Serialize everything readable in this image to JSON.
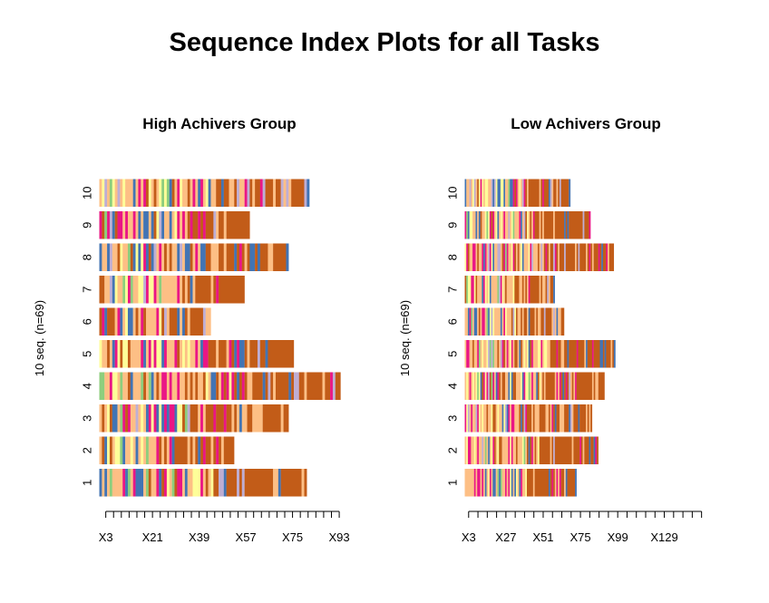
{
  "main_title": "Sequence Index Plots for all Tasks",
  "palette": {
    "dark_orange": "#c25c18",
    "light_orange": "#fdbf85",
    "pink": "#ea1685",
    "blue": "#4274b4",
    "yellow": "#fefe99",
    "green": "#8dce7d",
    "lavender": "#beaed4",
    "white": "#ffffff"
  },
  "chart_data": [
    {
      "type": "sequence-index",
      "title": "High Achivers Group",
      "ylabel": "10 seq. (n=69)",
      "sequence_labels": [
        "1",
        "2",
        "3",
        "4",
        "5",
        "6",
        "7",
        "8",
        "9",
        "10"
      ],
      "x_tick_labels": [
        "X3",
        "X21",
        "X39",
        "X57",
        "X75",
        "X93"
      ],
      "x_tick_values": [
        3,
        21,
        39,
        57,
        75,
        93
      ],
      "xlim": [
        1,
        93
      ],
      "tick_every": 3,
      "sequence_lengths": [
        80,
        52,
        73,
        93,
        75,
        43,
        56,
        73,
        58,
        81
      ]
    },
    {
      "type": "sequence-index",
      "title": "Low Achivers Group",
      "ylabel": "10 seq. (n=69)",
      "sequence_labels": [
        "1",
        "2",
        "3",
        "4",
        "5",
        "6",
        "7",
        "8",
        "9",
        "10"
      ],
      "x_tick_labels": [
        "X3",
        "X27",
        "X51",
        "X75",
        "X99",
        "X129"
      ],
      "x_tick_values": [
        3,
        27,
        51,
        75,
        99,
        129
      ],
      "xlim": [
        1,
        153
      ],
      "tick_every": 6,
      "sequence_lengths": [
        72,
        86,
        82,
        90,
        97,
        64,
        58,
        96,
        81,
        68
      ]
    }
  ]
}
